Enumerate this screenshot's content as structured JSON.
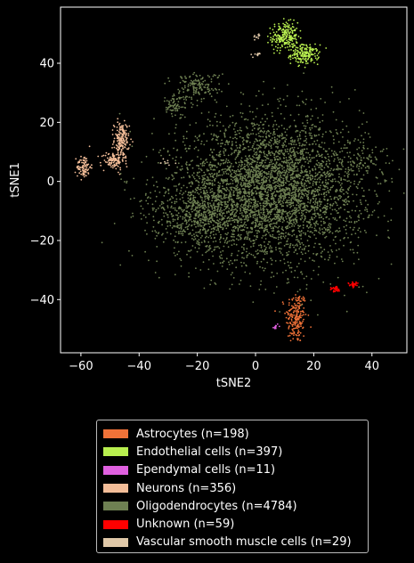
{
  "chart_data": {
    "type": "scatter",
    "title": "",
    "xlabel": "tSNE2",
    "ylabel": "tSNE1",
    "xlim": [
      -67,
      52
    ],
    "ylim": [
      -58,
      59
    ],
    "xticks": [
      -60,
      -40,
      -20,
      0,
      20,
      40
    ],
    "yticks": [
      -40,
      -20,
      0,
      20,
      40
    ],
    "xtick_labels": [
      "−60",
      "−40",
      "−20",
      "0",
      "20",
      "40"
    ],
    "ytick_labels": [
      "−40",
      "−20",
      "0",
      "20",
      "40"
    ],
    "legend_position": "below",
    "series": [
      {
        "name": "Astrocytes (n=198)",
        "color": "#f07238",
        "n": 198,
        "clusters": [
          {
            "cx": 14,
            "cy": -46,
            "sx": 1.8,
            "sy": 4.5,
            "n": 198
          }
        ]
      },
      {
        "name": "Endothelial cells (n=397)",
        "color": "#b8ef4f",
        "n": 397,
        "clusters": [
          {
            "cx": 10,
            "cy": 49,
            "sx": 2.3,
            "sy": 2.4,
            "n": 220
          },
          {
            "cx": 17,
            "cy": 43,
            "sx": 2.4,
            "sy": 1.6,
            "n": 177
          }
        ]
      },
      {
        "name": "Ependymal cells (n=11)",
        "color": "#e060e0",
        "n": 11,
        "clusters": [
          {
            "cx": 7,
            "cy": -49,
            "sx": 0.4,
            "sy": 0.5,
            "n": 11
          }
        ]
      },
      {
        "name": "Neurons (n=356)",
        "color": "#f3bd98",
        "n": 356,
        "clusters": [
          {
            "cx": -46,
            "cy": 14,
            "sx": 1.3,
            "sy": 3.0,
            "n": 170
          },
          {
            "cx": -49,
            "cy": 7,
            "sx": 2.0,
            "sy": 1.5,
            "n": 100
          },
          {
            "cx": -59,
            "cy": 5,
            "sx": 1.2,
            "sy": 2.0,
            "n": 86
          }
        ]
      },
      {
        "name": "Oligodendrocytes (n=4784)",
        "color": "#6e8052",
        "n": 4784,
        "clusters": [
          {
            "cx": 5,
            "cy": -3,
            "sx": 16,
            "sy": 12,
            "n": 4000
          },
          {
            "cx": -20,
            "cy": -11,
            "sx": 8,
            "sy": 5,
            "n": 500
          },
          {
            "cx": -20,
            "cy": 32,
            "sx": 4,
            "sy": 2.5,
            "n": 150
          },
          {
            "cx": -28,
            "cy": 26,
            "sx": 2,
            "sy": 2,
            "n": 70
          },
          {
            "cx": 38,
            "cy": 7,
            "sx": 5,
            "sy": 2.5,
            "n": 64
          }
        ]
      },
      {
        "name": "Unknown (n=59)",
        "color": "#ff0000",
        "n": 59,
        "clusters": [
          {
            "cx": 27.5,
            "cy": -36.5,
            "sx": 0.8,
            "sy": 0.5,
            "n": 31
          },
          {
            "cx": 33.5,
            "cy": -35,
            "sx": 0.8,
            "sy": 0.5,
            "n": 28
          }
        ]
      },
      {
        "name": "Vascular smooth muscle cells (n=29)",
        "color": "#e0c8a8",
        "n": 29,
        "clusters": [
          {
            "cx": 0,
            "cy": 49,
            "sx": 1.0,
            "sy": 0.5,
            "n": 10
          },
          {
            "cx": 0,
            "cy": 43,
            "sx": 1.0,
            "sy": 0.5,
            "n": 10
          },
          {
            "cx": -30,
            "cy": 6,
            "sx": 1.5,
            "sy": 1.0,
            "n": 9
          }
        ]
      }
    ]
  }
}
